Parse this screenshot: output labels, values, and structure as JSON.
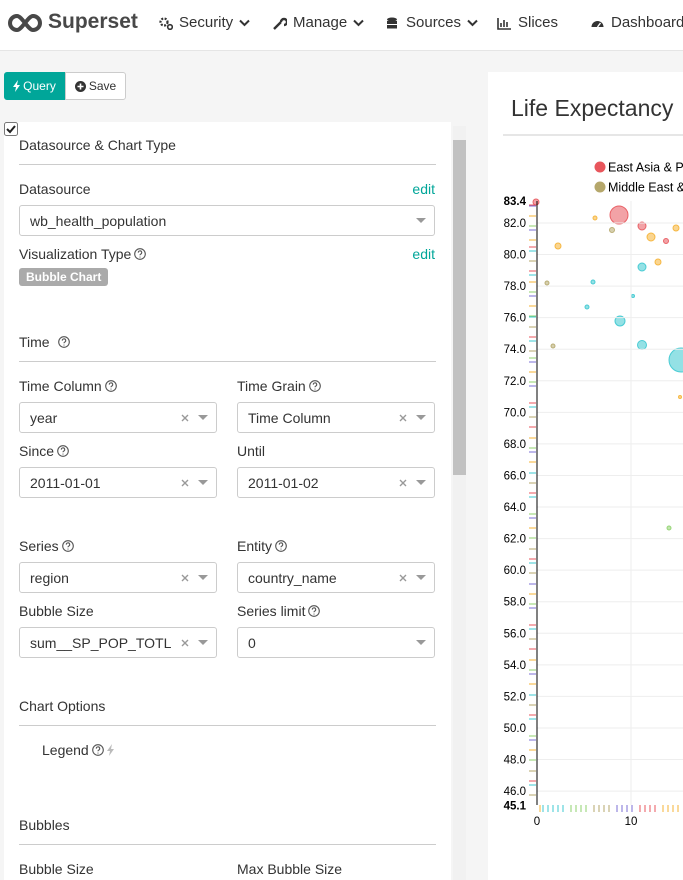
{
  "navbar": {
    "brand": "Superset",
    "items": [
      "Security",
      "Manage",
      "Sources",
      "Slices",
      "Dashboards"
    ]
  },
  "toolbar": {
    "query": "Query",
    "save": "Save"
  },
  "panel": {
    "sections": [
      {
        "title": "Datasource & Chart Type",
        "fields": [
          {
            "label": "Datasource",
            "action": "edit",
            "value": "wb_health_population"
          },
          {
            "label": "Visualization Type",
            "action": "edit",
            "value": "Bubble Chart"
          }
        ]
      },
      {
        "title": "Time",
        "fields": [
          {
            "label": "Time Column",
            "value": "year"
          },
          {
            "label": "Time Grain",
            "value": "Time Column"
          },
          {
            "label": "Since",
            "value": "2011-01-01"
          },
          {
            "label": "Until",
            "value": "2011-01-02"
          },
          {
            "label": "Series",
            "value": "region"
          },
          {
            "label": "Entity",
            "value": "country_name"
          },
          {
            "label": "Bubble Size",
            "value": "sum__SP_POP_TOTL"
          },
          {
            "label": "Series limit",
            "value": "0"
          }
        ]
      },
      {
        "title": "Chart Options",
        "fields": [
          {
            "label": "Legend"
          }
        ]
      },
      {
        "title": "Bubbles",
        "fields": [
          {
            "label": "Bubble Size"
          },
          {
            "label": "Max Bubble Size"
          }
        ]
      }
    ]
  },
  "chart": {
    "title": "Life Expectancy",
    "legend": [
      "East Asia & Pa",
      "Middle East &"
    ],
    "y_ticks": [
      "83.4",
      "82.0",
      "80.0",
      "78.0",
      "76.0",
      "74.0",
      "72.0",
      "70.0",
      "68.0",
      "66.0",
      "64.0",
      "62.0",
      "60.0",
      "58.0",
      "56.0",
      "54.0",
      "52.0",
      "50.0",
      "48.0",
      "46.0",
      "45.1"
    ],
    "x_ticks": [
      "0",
      "10"
    ]
  }
}
